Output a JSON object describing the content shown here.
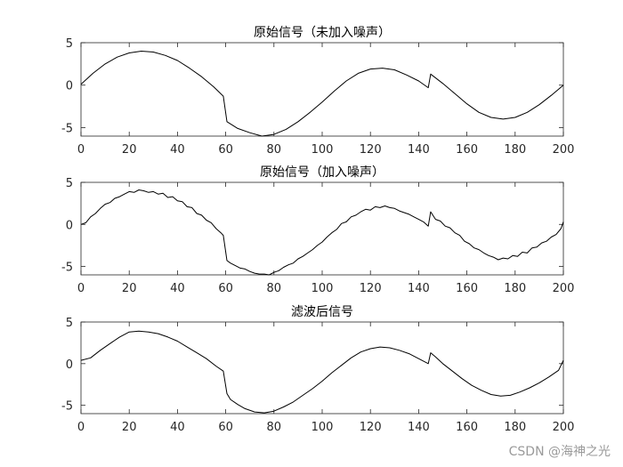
{
  "chart_data": [
    {
      "type": "line",
      "title": "原始信号（未加入噪声）",
      "xlabel": "",
      "ylabel": "",
      "xlim": [
        0,
        200
      ],
      "ylim": [
        -6,
        5
      ],
      "xticks": [
        0,
        20,
        40,
        60,
        80,
        100,
        120,
        140,
        160,
        180,
        200
      ],
      "yticks": [
        5,
        0,
        -5
      ],
      "grid": false,
      "series": [
        {
          "color": "#000000",
          "points": [
            [
              0,
              0.1
            ],
            [
              5,
              1.4
            ],
            [
              10,
              2.5
            ],
            [
              15,
              3.3
            ],
            [
              20,
              3.8
            ],
            [
              25,
              4.0
            ],
            [
              30,
              3.9
            ],
            [
              35,
              3.5
            ],
            [
              40,
              2.9
            ],
            [
              45,
              2.0
            ],
            [
              50,
              1.0
            ],
            [
              55,
              -0.2
            ],
            [
              59,
              -1.3
            ],
            [
              60.5,
              -4.3
            ],
            [
              65,
              -5.1
            ],
            [
              70,
              -5.6
            ],
            [
              75,
              -6.0
            ],
            [
              80,
              -5.8
            ],
            [
              85,
              -5.2
            ],
            [
              90,
              -4.3
            ],
            [
              95,
              -3.2
            ],
            [
              100,
              -2.0
            ],
            [
              105,
              -0.7
            ],
            [
              110,
              0.5
            ],
            [
              115,
              1.4
            ],
            [
              120,
              1.9
            ],
            [
              125,
              2.0
            ],
            [
              130,
              1.8
            ],
            [
              135,
              1.2
            ],
            [
              140,
              0.5
            ],
            [
              144,
              -0.3
            ],
            [
              145,
              1.3
            ],
            [
              150,
              0.2
            ],
            [
              155,
              -1.0
            ],
            [
              160,
              -2.2
            ],
            [
              165,
              -3.2
            ],
            [
              170,
              -3.8
            ],
            [
              175,
              -4.0
            ],
            [
              180,
              -3.8
            ],
            [
              185,
              -3.2
            ],
            [
              190,
              -2.3
            ],
            [
              195,
              -1.2
            ],
            [
              200,
              0.0
            ]
          ]
        }
      ]
    },
    {
      "type": "line",
      "title": "原始信号（加入噪声）",
      "xlabel": "",
      "ylabel": "",
      "xlim": [
        0,
        200
      ],
      "ylim": [
        -6,
        5
      ],
      "xticks": [
        0,
        20,
        40,
        60,
        80,
        100,
        120,
        140,
        160,
        180,
        200
      ],
      "yticks": [
        5,
        0,
        -5
      ],
      "grid": false,
      "series": [
        {
          "color": "#000000",
          "points": [
            [
              0,
              0.0
            ],
            [
              2,
              0.2
            ],
            [
              4,
              0.9
            ],
            [
              6,
              1.3
            ],
            [
              8,
              1.9
            ],
            [
              10,
              2.4
            ],
            [
              12,
              2.6
            ],
            [
              14,
              3.1
            ],
            [
              16,
              3.3
            ],
            [
              18,
              3.6
            ],
            [
              20,
              3.9
            ],
            [
              22,
              3.8
            ],
            [
              24,
              4.1
            ],
            [
              26,
              4.0
            ],
            [
              28,
              3.8
            ],
            [
              30,
              3.9
            ],
            [
              32,
              3.6
            ],
            [
              34,
              3.7
            ],
            [
              36,
              3.2
            ],
            [
              38,
              3.3
            ],
            [
              40,
              2.8
            ],
            [
              42,
              2.7
            ],
            [
              44,
              2.1
            ],
            [
              46,
              2.0
            ],
            [
              48,
              1.3
            ],
            [
              50,
              1.1
            ],
            [
              52,
              0.5
            ],
            [
              54,
              0.2
            ],
            [
              56,
              -0.5
            ],
            [
              58,
              -1.0
            ],
            [
              59,
              -1.3
            ],
            [
              60.5,
              -4.3
            ],
            [
              62,
              -4.6
            ],
            [
              64,
              -4.9
            ],
            [
              66,
              -5.2
            ],
            [
              68,
              -5.3
            ],
            [
              70,
              -5.6
            ],
            [
              72,
              -5.8
            ],
            [
              74,
              -5.9
            ],
            [
              76,
              -5.9
            ],
            [
              78,
              -6.0
            ],
            [
              80,
              -5.7
            ],
            [
              82,
              -5.5
            ],
            [
              84,
              -5.1
            ],
            [
              86,
              -4.8
            ],
            [
              88,
              -4.6
            ],
            [
              90,
              -4.1
            ],
            [
              92,
              -3.8
            ],
            [
              94,
              -3.4
            ],
            [
              96,
              -3.0
            ],
            [
              98,
              -2.5
            ],
            [
              100,
              -2.1
            ],
            [
              102,
              -1.5
            ],
            [
              104,
              -1.0
            ],
            [
              106,
              -0.6
            ],
            [
              108,
              0.1
            ],
            [
              110,
              0.3
            ],
            [
              112,
              0.9
            ],
            [
              114,
              1.1
            ],
            [
              116,
              1.5
            ],
            [
              118,
              1.8
            ],
            [
              120,
              1.7
            ],
            [
              122,
              2.1
            ],
            [
              124,
              2.0
            ],
            [
              126,
              2.2
            ],
            [
              128,
              2.0
            ],
            [
              130,
              1.9
            ],
            [
              132,
              1.6
            ],
            [
              134,
              1.4
            ],
            [
              136,
              1.2
            ],
            [
              138,
              0.9
            ],
            [
              140,
              0.6
            ],
            [
              142,
              0.3
            ],
            [
              144,
              -0.2
            ],
            [
              145,
              1.5
            ],
            [
              147,
              0.6
            ],
            [
              149,
              0.4
            ],
            [
              151,
              -0.2
            ],
            [
              153,
              -0.4
            ],
            [
              155,
              -1.0
            ],
            [
              157,
              -1.3
            ],
            [
              159,
              -2.0
            ],
            [
              161,
              -2.3
            ],
            [
              163,
              -2.8
            ],
            [
              165,
              -3.0
            ],
            [
              167,
              -3.4
            ],
            [
              169,
              -3.7
            ],
            [
              171,
              -3.9
            ],
            [
              173,
              -4.2
            ],
            [
              175,
              -4.0
            ],
            [
              177,
              -4.1
            ],
            [
              179,
              -3.7
            ],
            [
              181,
              -3.8
            ],
            [
              183,
              -3.3
            ],
            [
              185,
              -3.4
            ],
            [
              187,
              -2.8
            ],
            [
              189,
              -2.7
            ],
            [
              191,
              -2.2
            ],
            [
              193,
              -2.0
            ],
            [
              195,
              -1.5
            ],
            [
              197,
              -1.2
            ],
            [
              199,
              -0.5
            ],
            [
              200,
              0.3
            ]
          ]
        }
      ]
    },
    {
      "type": "line",
      "title": "滤波后信号",
      "xlabel": "",
      "ylabel": "",
      "xlim": [
        0,
        200
      ],
      "ylim": [
        -6,
        5
      ],
      "xticks": [
        0,
        20,
        40,
        60,
        80,
        100,
        120,
        140,
        160,
        180,
        200
      ],
      "yticks": [
        5,
        0,
        -5
      ],
      "grid": false,
      "series": [
        {
          "color": "#000000",
          "points": [
            [
              0,
              0.4
            ],
            [
              4,
              0.7
            ],
            [
              8,
              1.6
            ],
            [
              12,
              2.4
            ],
            [
              16,
              3.2
            ],
            [
              20,
              3.8
            ],
            [
              24,
              3.9
            ],
            [
              28,
              3.8
            ],
            [
              32,
              3.6
            ],
            [
              36,
              3.2
            ],
            [
              40,
              2.7
            ],
            [
              44,
              2.0
            ],
            [
              48,
              1.3
            ],
            [
              52,
              0.6
            ],
            [
              56,
              -0.3
            ],
            [
              59,
              -0.9
            ],
            [
              60.5,
              -3.6
            ],
            [
              62,
              -4.3
            ],
            [
              65,
              -4.9
            ],
            [
              68,
              -5.4
            ],
            [
              72,
              -5.8
            ],
            [
              76,
              -5.9
            ],
            [
              80,
              -5.7
            ],
            [
              84,
              -5.2
            ],
            [
              88,
              -4.6
            ],
            [
              92,
              -3.8
            ],
            [
              96,
              -3.0
            ],
            [
              100,
              -2.1
            ],
            [
              104,
              -1.1
            ],
            [
              108,
              -0.2
            ],
            [
              112,
              0.7
            ],
            [
              116,
              1.4
            ],
            [
              120,
              1.8
            ],
            [
              124,
              2.0
            ],
            [
              128,
              1.9
            ],
            [
              132,
              1.6
            ],
            [
              136,
              1.2
            ],
            [
              140,
              0.6
            ],
            [
              144,
              0.0
            ],
            [
              145,
              1.3
            ],
            [
              147,
              0.8
            ],
            [
              150,
              0.0
            ],
            [
              154,
              -0.9
            ],
            [
              158,
              -1.8
            ],
            [
              162,
              -2.6
            ],
            [
              166,
              -3.2
            ],
            [
              170,
              -3.7
            ],
            [
              174,
              -3.9
            ],
            [
              178,
              -3.8
            ],
            [
              182,
              -3.4
            ],
            [
              186,
              -2.9
            ],
            [
              190,
              -2.3
            ],
            [
              194,
              -1.6
            ],
            [
              198,
              -0.8
            ],
            [
              200,
              0.4
            ]
          ]
        }
      ]
    }
  ],
  "watermark": "CSDN @海神之光"
}
